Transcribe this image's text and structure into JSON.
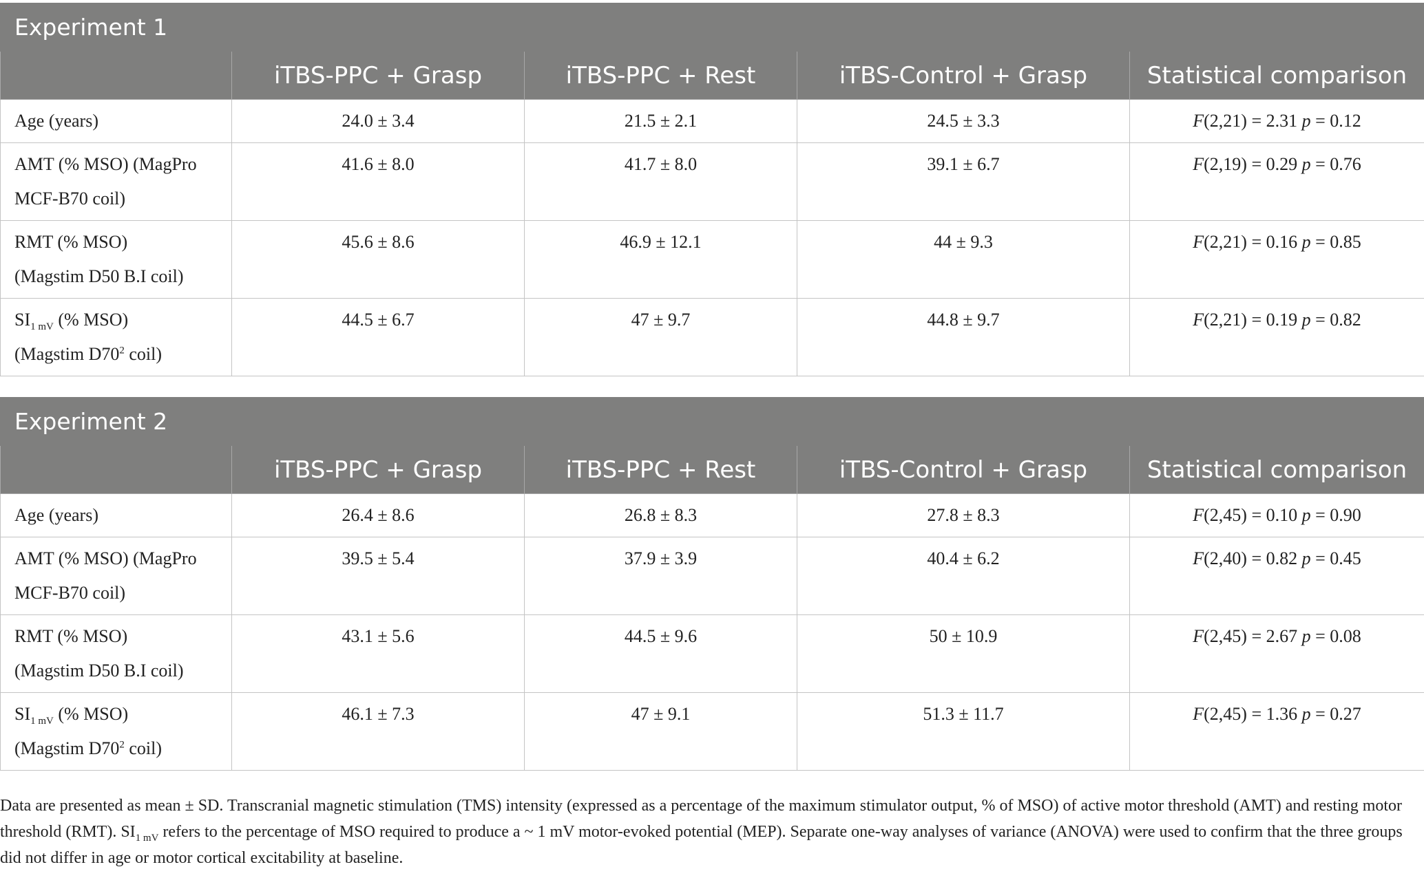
{
  "tables": [
    {
      "title": "Experiment 1",
      "header": [
        "",
        "iTBS-PPC + Grasp",
        "iTBS-PPC + Rest",
        "iTBS-Control + Grasp",
        "Statistical comparison"
      ],
      "rows": [
        {
          "label": [
            [
              {
                "text": "Age (years)"
              }
            ]
          ],
          "cells": [
            "24.0 ± 3.4",
            "21.5 ± 2.1",
            "24.5 ± 3.3"
          ],
          "stat": [
            {
              "text": "F",
              "format": "italic"
            },
            {
              "text": "(2,21) = 2.31 "
            },
            {
              "text": "p",
              "format": "italic"
            },
            {
              "text": " = 0.12"
            }
          ]
        },
        {
          "label": [
            [
              {
                "text": "AMT (% MSO) (MagPro"
              }
            ],
            [
              {
                "text": "MCF-B70 coil)"
              }
            ]
          ],
          "cells": [
            "41.6 ± 8.0",
            "41.7 ± 8.0",
            "39.1 ± 6.7"
          ],
          "stat": [
            {
              "text": "F",
              "format": "italic"
            },
            {
              "text": "(2,19) = 0.29 "
            },
            {
              "text": "p",
              "format": "italic"
            },
            {
              "text": " = 0.76"
            }
          ]
        },
        {
          "label": [
            [
              {
                "text": "RMT (% MSO)"
              }
            ],
            [
              {
                "text": "(Magstim D50 B.I coil)"
              }
            ]
          ],
          "cells": [
            "45.6 ± 8.6",
            "46.9 ± 12.1",
            "44 ± 9.3"
          ],
          "stat": [
            {
              "text": "F",
              "format": "italic"
            },
            {
              "text": "(2,21) = 0.16 "
            },
            {
              "text": "p",
              "format": "italic"
            },
            {
              "text": " = 0.85"
            }
          ]
        },
        {
          "label": [
            [
              {
                "text": "SI"
              },
              {
                "text": "1 mV",
                "format": "sub"
              },
              {
                "text": " (% MSO)"
              }
            ],
            [
              {
                "text": "(Magstim D70"
              },
              {
                "text": "2",
                "format": "sup"
              },
              {
                "text": " coil)"
              }
            ]
          ],
          "cells": [
            "44.5 ± 6.7",
            "47 ± 9.7",
            "44.8 ± 9.7"
          ],
          "stat": [
            {
              "text": "F",
              "format": "italic"
            },
            {
              "text": "(2,21) = 0.19 "
            },
            {
              "text": "p",
              "format": "italic"
            },
            {
              "text": " = 0.82"
            }
          ]
        }
      ]
    },
    {
      "title": "Experiment 2",
      "header": [
        "",
        "iTBS-PPC + Grasp",
        "iTBS-PPC + Rest",
        "iTBS-Control + Grasp",
        "Statistical comparison"
      ],
      "rows": [
        {
          "label": [
            [
              {
                "text": "Age (years)"
              }
            ]
          ],
          "cells": [
            "26.4 ± 8.6",
            "26.8 ± 8.3",
            "27.8 ± 8.3"
          ],
          "stat": [
            {
              "text": "F",
              "format": "italic"
            },
            {
              "text": "(2,45) = 0.10 "
            },
            {
              "text": "p",
              "format": "italic"
            },
            {
              "text": " = 0.90"
            }
          ]
        },
        {
          "label": [
            [
              {
                "text": "AMT (% MSO) (MagPro"
              }
            ],
            [
              {
                "text": "MCF-B70 coil)"
              }
            ]
          ],
          "cells": [
            "39.5 ± 5.4",
            "37.9 ± 3.9",
            "40.4 ± 6.2"
          ],
          "stat": [
            {
              "text": "F",
              "format": "italic"
            },
            {
              "text": "(2,40) = 0.82 "
            },
            {
              "text": "p",
              "format": "italic"
            },
            {
              "text": " = 0.45"
            }
          ]
        },
        {
          "label": [
            [
              {
                "text": "RMT (% MSO)"
              }
            ],
            [
              {
                "text": "(Magstim D50 B.I coil)"
              }
            ]
          ],
          "cells": [
            "43.1 ± 5.6",
            "44.5 ± 9.6",
            "50 ± 10.9"
          ],
          "stat": [
            {
              "text": "F",
              "format": "italic"
            },
            {
              "text": "(2,45) = 2.67 "
            },
            {
              "text": "p",
              "format": "italic"
            },
            {
              "text": " = 0.08"
            }
          ]
        },
        {
          "label": [
            [
              {
                "text": "SI"
              },
              {
                "text": "1 mV",
                "format": "sub"
              },
              {
                "text": " (% MSO)"
              }
            ],
            [
              {
                "text": "(Magstim D70"
              },
              {
                "text": "2",
                "format": "sup"
              },
              {
                "text": " coil)"
              }
            ]
          ],
          "cells": [
            "46.1 ± 7.3",
            "47 ± 9.1",
            "51.3 ± 11.7"
          ],
          "stat": [
            {
              "text": "F",
              "format": "italic"
            },
            {
              "text": "(2,45) = 1.36 "
            },
            {
              "text": "p",
              "format": "italic"
            },
            {
              "text": " = 0.27"
            }
          ]
        }
      ]
    }
  ],
  "footnote": [
    {
      "text": "Data are presented as mean ± SD. Transcranial magnetic stimulation (TMS) intensity (expressed as a percentage of the maximum stimulator output, % of MSO) of active motor threshold (AMT) and resting motor threshold (RMT). SI"
    },
    {
      "text": "1 mV",
      "format": "sub"
    },
    {
      "text": " refers to the percentage of MSO required to produce a ~ 1 mV motor-evoked potential (MEP). Separate one-way analyses of variance (ANOVA) were used to confirm that the three groups did not differ in age or motor cortical excitability at baseline."
    }
  ]
}
